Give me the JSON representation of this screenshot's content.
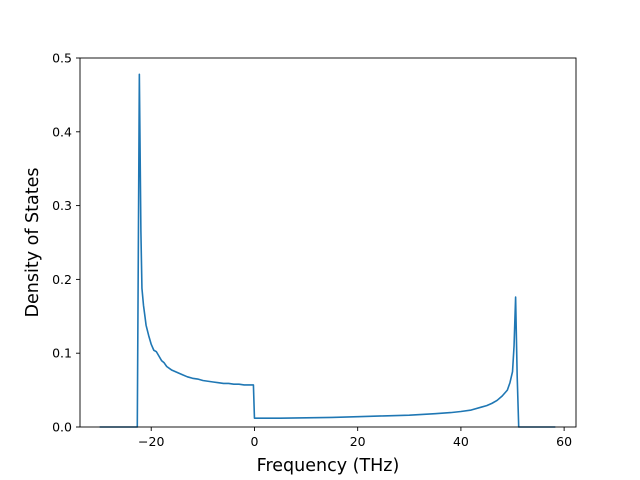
{
  "chart_data": {
    "type": "line",
    "title": "",
    "xlabel": "Frequency (THz)",
    "ylabel": "Density of States",
    "xlim": [
      -33.8,
      62.3
    ],
    "ylim": [
      0,
      0.5
    ],
    "x_ticks": [
      -20,
      0,
      20,
      40,
      60
    ],
    "y_ticks": [
      0.0,
      0.1,
      0.2,
      0.3,
      0.4,
      0.5
    ],
    "x_tick_labels": [
      "−20",
      "0",
      "20",
      "40",
      "60"
    ],
    "y_tick_labels": [
      "0.0",
      "0.1",
      "0.2",
      "0.3",
      "0.4",
      "0.5"
    ],
    "grid": false,
    "legend": "none",
    "series": [
      {
        "color": "#1f77b4",
        "x": [
          -30.0,
          -22.7,
          -22.3,
          -22.0,
          -21.8,
          -21.5,
          -21.2,
          -21.0,
          -20.5,
          -20.0,
          -19.5,
          -19.0,
          -18.5,
          -18.0,
          -17.5,
          -17.0,
          -16.0,
          -15.0,
          -14.0,
          -13.0,
          -12.0,
          -11.0,
          -10.0,
          -9.0,
          -8.0,
          -7.0,
          -6.0,
          -5.0,
          -4.0,
          -3.0,
          -2.0,
          -1.0,
          -0.2,
          0.0,
          0.3,
          5.0,
          10.0,
          15.0,
          20.0,
          25.0,
          30.0,
          35.0,
          38.0,
          40.0,
          42.0,
          44.0,
          45.0,
          46.0,
          47.0,
          48.0,
          49.0,
          49.5,
          50.0,
          50.3,
          50.6,
          50.9,
          51.2,
          55.0,
          58.3
        ],
        "y": [
          0.0,
          0.0,
          0.478,
          0.265,
          0.188,
          0.165,
          0.149,
          0.138,
          0.124,
          0.112,
          0.104,
          0.102,
          0.096,
          0.09,
          0.087,
          0.082,
          0.077,
          0.074,
          0.071,
          0.068,
          0.066,
          0.065,
          0.063,
          0.062,
          0.061,
          0.06,
          0.059,
          0.059,
          0.058,
          0.058,
          0.057,
          0.057,
          0.057,
          0.012,
          0.012,
          0.012,
          0.0125,
          0.013,
          0.014,
          0.015,
          0.016,
          0.018,
          0.0195,
          0.021,
          0.023,
          0.027,
          0.029,
          0.032,
          0.036,
          0.042,
          0.05,
          0.06,
          0.075,
          0.11,
          0.176,
          0.07,
          0.0,
          0.0,
          0.0
        ]
      }
    ]
  }
}
